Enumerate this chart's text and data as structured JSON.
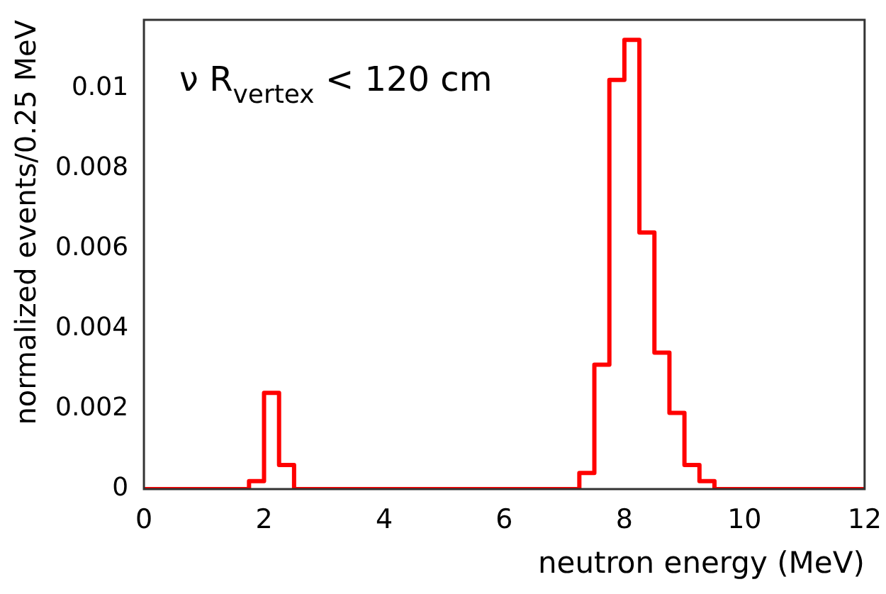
{
  "chart_data": {
    "type": "histogram",
    "xlabel": "neutron energy (MeV)",
    "ylabel": "normalized events/0.25 MeV",
    "annotations": [
      "ν R$_{vertex}$ < 120 cm"
    ],
    "bins": [
      0,
      0.25,
      0.5,
      0.75,
      1,
      1.25,
      1.5,
      1.75,
      2,
      2.25,
      2.5,
      2.75,
      3,
      3.25,
      3.5,
      3.75,
      4,
      4.25,
      4.5,
      4.75,
      5,
      5.25,
      5.5,
      5.75,
      6,
      6.25,
      6.5,
      6.75,
      7,
      7.25,
      7.5,
      7.75,
      8,
      8.25,
      8.5,
      8.75,
      9,
      9.25,
      9.5,
      9.75,
      10,
      10.25,
      10.5,
      10.75,
      11,
      11.25,
      11.5,
      11.75,
      12
    ],
    "values": [
      0,
      0,
      0,
      0,
      0,
      0,
      0,
      0.0002,
      0.0024,
      0.0006,
      0,
      0,
      0,
      0,
      0,
      0,
      0,
      0,
      0,
      0,
      0,
      0,
      0,
      0,
      0,
      0,
      0,
      0,
      0,
      0.0004,
      0.0031,
      0.0102,
      0.0112,
      0.0064,
      0.0034,
      0.0019,
      0.0006,
      0.0002,
      0,
      0,
      0,
      0,
      0,
      0,
      0,
      0,
      0,
      0
    ],
    "color": "#ff0000",
    "xlim": [
      0,
      12
    ],
    "xticks": [
      0,
      2,
      4,
      6,
      8,
      10,
      12
    ],
    "ylim": [
      0,
      0.0117
    ],
    "yticks": [
      0,
      0.002,
      0.004,
      0.006,
      0.008,
      0.01
    ],
    "grid": false,
    "legend": false
  }
}
